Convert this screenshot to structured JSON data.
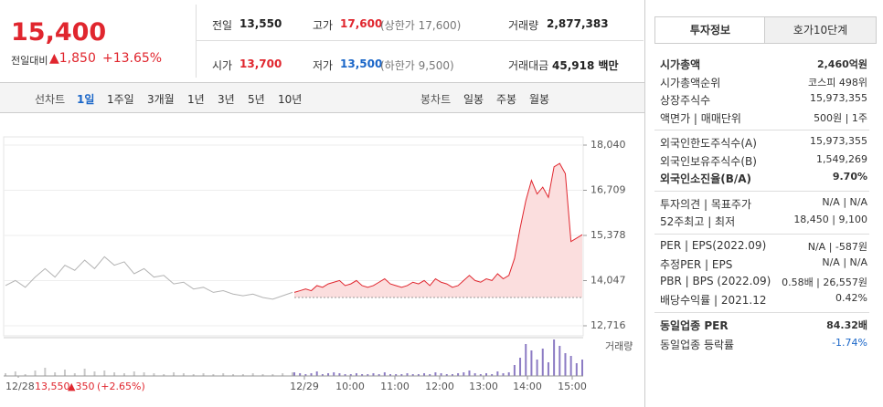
{
  "header": {
    "price": "15,400",
    "change_label": "전일대비",
    "change": "▲1,850",
    "change_pct": "+13.65%"
  },
  "stats": [
    [
      {
        "label": "전일",
        "value": "13,550"
      },
      {
        "label": "고가",
        "value": "17,600",
        "extra": "(상한가 17,600)"
      },
      {
        "label": "거래량",
        "value": "2,877,383"
      }
    ],
    [
      {
        "label": "시가",
        "value": "13,700"
      },
      {
        "label": "저가",
        "value": "13,500",
        "extra": "(하한가 9,500)"
      },
      {
        "label": "거래대금",
        "value": "45,918 백만"
      }
    ]
  ],
  "tabs": {
    "line_label": "선차트",
    "line": [
      "1일",
      "1주일",
      "3개월",
      "1년",
      "3년",
      "5년",
      "10년"
    ],
    "candle_label": "봉차트",
    "candle": [
      "일봉",
      "주봉",
      "월봉"
    ]
  },
  "chart_data": {
    "type": "line",
    "ylim": [
      12716,
      18040
    ],
    "yticks": [
      {
        "value": 12716,
        "label": "12,716"
      },
      {
        "value": 14047,
        "label": "14,047"
      },
      {
        "value": 15378,
        "label": "15,378"
      },
      {
        "value": 16709,
        "label": "16,709"
      },
      {
        "value": 18040,
        "label": "18,040"
      }
    ],
    "base": 13550,
    "series": [
      {
        "color": "#b4b4b4",
        "values": [
          13900,
          14050,
          13850,
          14150,
          14400,
          14150,
          14500,
          14350,
          14650,
          14400,
          14750,
          14500,
          14600,
          14250,
          14400,
          14150,
          14200,
          13950,
          14000,
          13800,
          13850,
          13700,
          13750,
          13650,
          13600,
          13650,
          13550,
          13500,
          13600,
          13700
        ]
      },
      {
        "color": "#e0262e",
        "values": [
          13700,
          13750,
          13800,
          13750,
          13900,
          13850,
          13950,
          14000,
          14050,
          13900,
          13950,
          14050,
          13900,
          13850,
          13900,
          14000,
          14100,
          13950,
          13900,
          13850,
          13900,
          14000,
          13950,
          14050,
          13900,
          14100,
          14000,
          13950,
          13850,
          13900,
          14050,
          14200,
          14050,
          14000,
          14100,
          14050,
          14250,
          14100,
          14200,
          14700,
          15600,
          16400,
          17000,
          16600,
          16800,
          16500,
          17400,
          17500,
          17200,
          15200,
          15300,
          15400
        ]
      }
    ],
    "volume_label": "거래량",
    "volume": [
      {
        "color": "#c8c8c8",
        "values": [
          3,
          5,
          2,
          6,
          9,
          4,
          7,
          3,
          8,
          5,
          6,
          4,
          3,
          5,
          4,
          3,
          2,
          4,
          3,
          2,
          3,
          2,
          3,
          2,
          2,
          3,
          2,
          2,
          3,
          4
        ]
      },
      {
        "color": "#8c7bc4",
        "values": [
          4,
          3,
          2,
          3,
          5,
          2,
          3,
          4,
          3,
          2,
          2,
          3,
          2,
          2,
          3,
          2,
          4,
          2,
          2,
          2,
          3,
          2,
          2,
          3,
          2,
          4,
          3,
          2,
          2,
          3,
          4,
          6,
          3,
          2,
          3,
          2,
          5,
          3,
          4,
          12,
          20,
          35,
          28,
          18,
          30,
          15,
          40,
          33,
          25,
          22,
          14,
          18
        ]
      }
    ],
    "xtick_labels": [
      "12/28",
      "12/29",
      "10:00",
      "11:00",
      "12:00",
      "13:00",
      "14:00",
      "15:00"
    ],
    "footer": {
      "date": "12/28",
      "price": "13,550",
      "change": "▲350",
      "pct": "(+2.65%)"
    }
  },
  "info": {
    "tabs": [
      "투자정보",
      "호가10단계"
    ],
    "groups": [
      [
        [
          "시가총액",
          "2,460억원"
        ],
        [
          "시가총액순위",
          "코스피 498위"
        ],
        [
          "상장주식수",
          "15,973,355"
        ],
        [
          "액면가 | 매매단위",
          "500원 | 1주"
        ]
      ],
      [
        [
          "외국인한도주식수(A)",
          "15,973,355"
        ],
        [
          "외국인보유주식수(B)",
          "1,549,269"
        ],
        [
          "외국인소진율(B/A)",
          "9.70%"
        ]
      ],
      [
        [
          "투자의견 | 목표주가",
          "N/A | N/A"
        ],
        [
          "52주최고 | 최저",
          "18,450 | 9,100"
        ]
      ],
      [
        [
          "PER | EPS(2022.09)",
          "N/A | -587원"
        ],
        [
          "추정PER | EPS",
          "N/A | N/A"
        ],
        [
          "PBR | BPS (2022.09)",
          "0.58배 | 26,557원"
        ],
        [
          "배당수익률 | 2021.12",
          "0.42%"
        ]
      ],
      [
        [
          "동일업종 PER",
          "84.32배"
        ],
        [
          "동일업종 등락률",
          "-1.74%"
        ]
      ]
    ]
  }
}
